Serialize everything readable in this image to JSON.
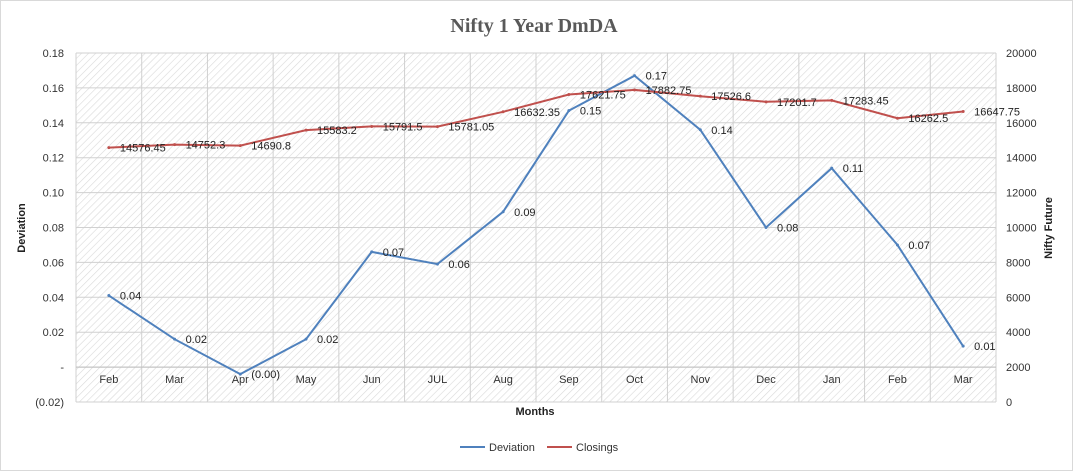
{
  "chart_data": {
    "type": "line",
    "title": "Nifty 1 Year DmDA",
    "xlabel": "Months",
    "ylabel_left": "Deviation",
    "ylabel_right": "Nifty Future",
    "categories": [
      "Feb",
      "Mar",
      "Apr",
      "May",
      "Jun",
      "JUL",
      "Aug",
      "Sep",
      "Oct",
      "Nov",
      "Dec",
      "Jan",
      "Feb",
      "Mar"
    ],
    "y_left": {
      "min": -0.02,
      "max": 0.18,
      "step": 0.02,
      "tick_labels": [
        "(0.02)",
        "-",
        "0.02",
        "0.04",
        "0.06",
        "0.08",
        "0.10",
        "0.12",
        "0.14",
        "0.16",
        "0.18"
      ]
    },
    "y_right": {
      "min": 0,
      "max": 20000,
      "step": 2000,
      "tick_labels": [
        "0",
        "2000",
        "4000",
        "6000",
        "8000",
        "10000",
        "12000",
        "14000",
        "16000",
        "18000",
        "20000"
      ]
    },
    "grid": true,
    "legend_position": "bottom",
    "series": [
      {
        "name": "Deviation",
        "axis": "left",
        "color": "#4f81bd",
        "values": [
          0.041,
          0.016,
          -0.004,
          0.016,
          0.066,
          0.059,
          0.089,
          0.147,
          0.167,
          0.136,
          0.08,
          0.114,
          0.07,
          0.012
        ],
        "data_labels": [
          "0.04",
          "0.02",
          "(0.00)",
          "0.02",
          "0.07",
          "0.06",
          "0.09",
          "0.15",
          "0.17",
          "0.14",
          "0.08",
          "0.11",
          "0.07",
          "0.01"
        ]
      },
      {
        "name": "Closings",
        "axis": "right",
        "color": "#c0504d",
        "values": [
          14576.45,
          14752.3,
          14690.8,
          15583.2,
          15791.5,
          15781.05,
          16632.35,
          17621.75,
          17882.75,
          17526.6,
          17201.7,
          17283.45,
          16262.5,
          16647.75
        ],
        "data_labels": [
          "14576.45",
          "14752.3",
          "14690.8",
          "15583.2",
          "15791.5",
          "15781.05",
          "16632.35",
          "17621.75",
          "17882.75",
          "17526.6",
          "17201.7",
          "17283.45",
          "16262.5",
          "16647.75"
        ]
      }
    ]
  }
}
